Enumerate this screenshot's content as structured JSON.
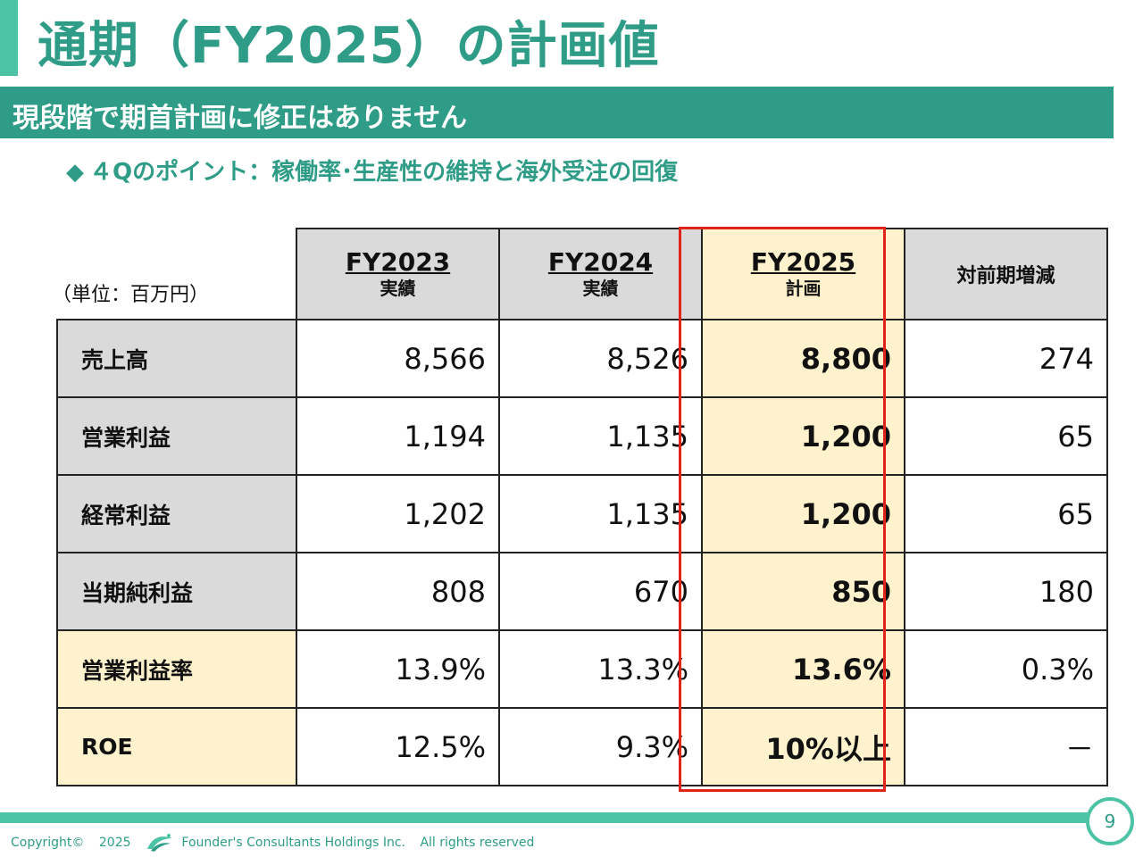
{
  "title": "通期（FY2025）の計画値",
  "subtitle": "現段階で期首計画に修正はありません",
  "point": "４Qのポイント：稼働率･生産性の維持と海外受注の回復",
  "unit_label": "（単位：百万円）",
  "columns": [
    {
      "year": "FY2023",
      "sub": "実績"
    },
    {
      "year": "FY2024",
      "sub": "実績"
    },
    {
      "year": "FY2025",
      "sub": "計画"
    },
    {
      "label": "対前期増減"
    }
  ],
  "rows": [
    {
      "label": "売上高",
      "fy2023": "8,566",
      "fy2024": "8,526",
      "fy2025": "8,800",
      "change": "274"
    },
    {
      "label": "営業利益",
      "fy2023": "1,194",
      "fy2024": "1,135",
      "fy2025": "1,200",
      "change": "65"
    },
    {
      "label": "経常利益",
      "fy2023": "1,202",
      "fy2024": "1,135",
      "fy2025": "1,200",
      "change": "65"
    },
    {
      "label": "当期純利益",
      "fy2023": "808",
      "fy2024": "670",
      "fy2025": "850",
      "change": "180"
    },
    {
      "label": "営業利益率",
      "fy2023": "13.9%",
      "fy2024": "13.3%",
      "fy2025": "13.6%",
      "change": "0.3%"
    },
    {
      "label": "ROE",
      "fy2023": "12.5%",
      "fy2024": "9.3%",
      "fy2025": "10%以上",
      "change": "－"
    }
  ],
  "footer": {
    "copyright": "Copyright©",
    "year": "2025",
    "company": "Founder's Consultants Holdings Inc.",
    "rights": "All rights reserved"
  },
  "page_number": "9",
  "colors": {
    "accent": "#2e9c86",
    "accent_light": "#4cc3a5",
    "highlight": "#fff2cc",
    "header_gray": "#dadada",
    "red_frame": "#e2231a"
  }
}
